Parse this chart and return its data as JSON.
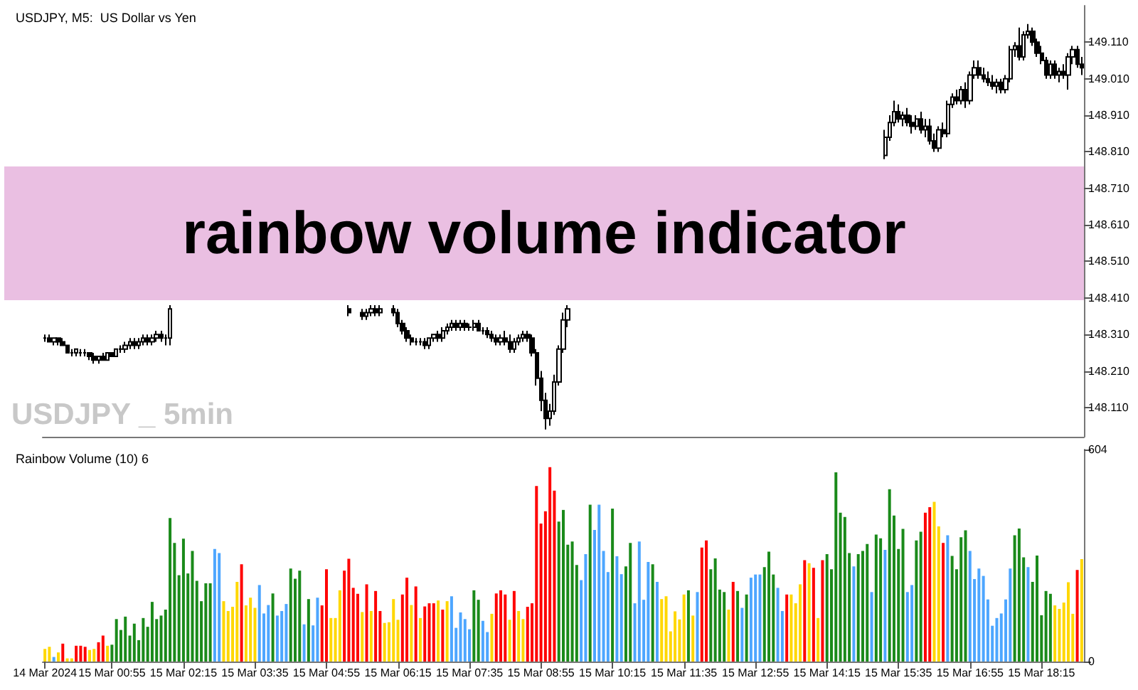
{
  "chart_data": [
    {
      "type": "candlestick",
      "title": "USDJPY, M5:  US Dollar vs Yen",
      "annotations": [
        "rainbow volume indicator",
        "USDJPY _ 5min"
      ],
      "color": "#000000",
      "tick_labels": "y",
      "ylim": [
        148.03,
        149.21
      ],
      "yticks": [
        {
          "value": 148.11,
          "label": "148.110"
        },
        {
          "value": 148.21,
          "label": "148.210"
        },
        {
          "value": 148.31,
          "label": "148.310"
        },
        {
          "value": 148.41,
          "label": "148.410"
        },
        {
          "value": 148.51,
          "label": "148.510"
        },
        {
          "value": 148.61,
          "label": "148.610"
        },
        {
          "value": 148.71,
          "label": "148.710"
        },
        {
          "value": 148.81,
          "label": "148.810"
        },
        {
          "value": 148.91,
          "label": "148.910"
        },
        {
          "value": 149.01,
          "label": "149.010"
        },
        {
          "value": 149.11,
          "label": "149.110"
        }
      ],
      "ohlc": [
        [
          148.3,
          148.31,
          148.29,
          148.3
        ],
        [
          148.3,
          148.31,
          148.29,
          148.29
        ],
        [
          148.29,
          148.3,
          148.28,
          148.3
        ],
        [
          148.3,
          148.3,
          148.28,
          148.29
        ],
        [
          148.29,
          148.3,
          148.28,
          148.28
        ],
        [
          148.28,
          148.28,
          148.26,
          148.26
        ],
        [
          148.26,
          148.27,
          148.25,
          148.26
        ],
        [
          148.26,
          148.27,
          148.25,
          148.27
        ],
        [
          148.26,
          148.27,
          148.25,
          148.26
        ],
        [
          148.26,
          148.27,
          148.25,
          148.26
        ],
        [
          148.26,
          148.26,
          148.24,
          148.25
        ],
        [
          148.25,
          148.26,
          148.23,
          148.24
        ],
        [
          148.24,
          148.25,
          148.23,
          148.25
        ],
        [
          148.25,
          148.26,
          148.24,
          148.24
        ],
        [
          148.24,
          148.26,
          148.24,
          148.26
        ],
        [
          148.26,
          148.26,
          148.25,
          148.25
        ],
        [
          148.25,
          148.27,
          148.25,
          148.27
        ],
        [
          148.27,
          148.28,
          148.26,
          148.27
        ],
        [
          148.27,
          148.29,
          148.26,
          148.28
        ],
        [
          148.28,
          148.3,
          148.27,
          148.29
        ],
        [
          148.29,
          148.3,
          148.27,
          148.28
        ],
        [
          148.28,
          148.3,
          148.27,
          148.29
        ],
        [
          148.29,
          148.31,
          148.28,
          148.3
        ],
        [
          148.3,
          148.31,
          148.28,
          148.29
        ],
        [
          148.29,
          148.31,
          148.28,
          148.3
        ],
        [
          148.3,
          148.32,
          148.29,
          148.31
        ],
        [
          148.31,
          148.32,
          148.29,
          148.3
        ],
        [
          148.3,
          148.31,
          148.28,
          148.3
        ],
        [
          148.3,
          148.39,
          148.28,
          148.38
        ],
        null,
        null,
        null,
        null,
        null,
        null,
        null,
        null,
        null,
        null,
        null,
        null,
        null,
        null,
        null,
        null,
        null,
        null,
        null,
        null,
        null,
        null,
        null,
        null,
        null,
        null,
        null,
        null,
        null,
        null,
        null,
        null,
        null,
        null,
        null,
        null,
        null,
        null,
        null,
        [
          148.38,
          148.39,
          148.36,
          148.37
        ],
        null,
        null,
        [
          148.37,
          148.38,
          148.35,
          148.36
        ],
        [
          148.36,
          148.38,
          148.35,
          148.37
        ],
        [
          148.37,
          148.39,
          148.36,
          148.38
        ],
        [
          148.38,
          148.39,
          148.36,
          148.37
        ],
        [
          148.37,
          148.39,
          148.36,
          148.38
        ],
        null,
        null,
        [
          148.38,
          148.39,
          148.36,
          148.37
        ],
        [
          148.37,
          148.38,
          148.33,
          148.34
        ],
        [
          148.34,
          148.35,
          148.31,
          148.32
        ],
        [
          148.32,
          148.33,
          148.29,
          148.3
        ],
        [
          148.3,
          148.31,
          148.28,
          148.29
        ],
        [
          148.29,
          148.3,
          148.28,
          148.29
        ],
        [
          148.29,
          148.3,
          148.28,
          148.29
        ],
        [
          148.29,
          148.3,
          148.27,
          148.28
        ],
        [
          148.28,
          148.3,
          148.27,
          148.3
        ],
        [
          148.3,
          148.31,
          148.29,
          148.31
        ],
        [
          148.31,
          148.32,
          148.29,
          148.3
        ],
        [
          148.3,
          148.33,
          148.29,
          148.32
        ],
        [
          148.32,
          148.34,
          148.31,
          148.33
        ],
        [
          148.33,
          148.35,
          148.32,
          148.34
        ],
        [
          148.34,
          148.35,
          148.32,
          148.33
        ],
        [
          148.33,
          148.35,
          148.32,
          148.34
        ],
        [
          148.34,
          148.35,
          148.32,
          148.33
        ],
        [
          148.33,
          148.34,
          148.32,
          148.33
        ],
        [
          148.33,
          148.35,
          148.32,
          148.34
        ],
        [
          148.34,
          148.35,
          148.32,
          148.32
        ],
        [
          148.32,
          148.33,
          148.31,
          148.32
        ],
        [
          148.32,
          148.33,
          148.3,
          148.31
        ],
        [
          148.31,
          148.32,
          148.29,
          148.3
        ],
        [
          148.3,
          148.31,
          148.28,
          148.29
        ],
        [
          148.29,
          148.31,
          148.28,
          148.3
        ],
        [
          148.3,
          148.32,
          148.28,
          148.29
        ],
        [
          148.29,
          148.31,
          148.26,
          148.27
        ],
        [
          148.27,
          148.3,
          148.26,
          148.29
        ],
        [
          148.29,
          148.31,
          148.28,
          148.3
        ],
        [
          148.3,
          148.32,
          148.29,
          148.31
        ],
        [
          148.31,
          148.32,
          148.29,
          148.3
        ],
        [
          148.3,
          148.31,
          148.25,
          148.26
        ],
        [
          148.26,
          148.27,
          148.17,
          148.19
        ],
        [
          148.19,
          148.21,
          148.1,
          148.13
        ],
        [
          148.13,
          148.15,
          148.05,
          148.08
        ],
        [
          148.08,
          148.12,
          148.06,
          148.1
        ],
        [
          148.1,
          148.2,
          148.09,
          148.18
        ],
        [
          148.18,
          148.28,
          148.17,
          148.27
        ],
        [
          148.27,
          148.37,
          148.26,
          148.35
        ],
        [
          148.35,
          148.39,
          148.33,
          148.38
        ],
        null,
        null,
        null,
        null,
        null,
        null,
        null,
        null,
        null,
        null,
        null,
        null,
        null,
        null,
        null,
        null,
        null,
        null,
        null,
        null,
        null,
        null,
        null,
        null,
        null,
        null,
        null,
        null,
        null,
        null,
        null,
        null,
        null,
        null,
        null,
        null,
        null,
        null,
        null,
        null,
        null,
        null,
        null,
        null,
        null,
        null,
        null,
        null,
        null,
        null,
        null,
        null,
        null,
        null,
        null,
        null,
        null,
        null,
        null,
        null,
        null,
        null,
        null,
        null,
        null,
        null,
        null,
        null,
        null,
        null,
        [
          148.8,
          148.87,
          148.79,
          148.85
        ],
        [
          148.85,
          148.91,
          148.84,
          148.89
        ],
        [
          148.89,
          148.95,
          148.88,
          148.92
        ],
        [
          148.92,
          148.94,
          148.89,
          148.9
        ],
        [
          148.9,
          148.92,
          148.88,
          148.91
        ],
        [
          148.91,
          148.93,
          148.88,
          148.89
        ],
        [
          148.89,
          148.91,
          148.86,
          148.88
        ],
        [
          148.88,
          148.91,
          148.87,
          148.9
        ],
        [
          148.9,
          148.92,
          148.86,
          148.87
        ],
        [
          148.87,
          148.9,
          148.85,
          148.88
        ],
        [
          148.88,
          148.9,
          148.83,
          148.84
        ],
        [
          148.84,
          148.86,
          148.81,
          148.82
        ],
        [
          148.82,
          148.88,
          148.81,
          148.87
        ],
        [
          148.87,
          148.89,
          148.85,
          148.86
        ],
        [
          148.86,
          148.95,
          148.85,
          148.94
        ],
        [
          148.94,
          148.97,
          148.93,
          148.96
        ],
        [
          148.96,
          148.98,
          148.94,
          148.95
        ],
        [
          148.95,
          148.99,
          148.94,
          148.98
        ],
        [
          148.98,
          149.0,
          148.93,
          148.95
        ],
        [
          148.95,
          149.03,
          148.94,
          149.02
        ],
        [
          149.02,
          149.06,
          149.01,
          149.04
        ],
        [
          149.04,
          149.06,
          149.01,
          149.02
        ],
        [
          149.02,
          149.04,
          149.0,
          149.01
        ],
        [
          149.01,
          149.03,
          148.99,
          149.0
        ],
        [
          149.0,
          149.02,
          148.98,
          148.99
        ],
        [
          148.99,
          149.01,
          148.97,
          149.0
        ],
        [
          149.0,
          149.01,
          148.97,
          148.98
        ],
        [
          148.98,
          149.02,
          148.97,
          149.01
        ],
        [
          149.01,
          149.1,
          149.0,
          149.09
        ],
        [
          149.09,
          149.11,
          149.07,
          149.1
        ],
        [
          149.1,
          149.15,
          149.06,
          149.07
        ],
        [
          149.07,
          149.14,
          149.06,
          149.13
        ],
        [
          149.13,
          149.16,
          149.12,
          149.14
        ],
        [
          149.14,
          149.15,
          149.1,
          149.11
        ],
        [
          149.11,
          149.12,
          149.07,
          149.08
        ],
        [
          149.08,
          149.1,
          149.05,
          149.06
        ],
        [
          149.06,
          149.07,
          149.01,
          149.02
        ],
        [
          149.02,
          149.06,
          149.01,
          149.05
        ],
        [
          149.05,
          149.06,
          149.01,
          149.02
        ],
        [
          149.02,
          149.04,
          149.0,
          149.03
        ],
        [
          149.03,
          149.05,
          149.01,
          149.02
        ],
        [
          149.02,
          149.08,
          148.98,
          149.07
        ],
        [
          149.07,
          149.1,
          149.05,
          149.09
        ],
        [
          149.09,
          149.1,
          149.04,
          149.05
        ],
        [
          149.05,
          149.07,
          149.02,
          149.04
        ]
      ]
    },
    {
      "type": "bar",
      "title": "Rainbow Volume (10) 6",
      "ylim": [
        0,
        604
      ],
      "yticks": [
        0,
        604
      ],
      "categories": [
        "14 Mar 2024",
        null,
        null,
        null,
        null,
        null,
        null,
        null,
        null,
        null,
        null,
        null,
        null,
        null,
        null,
        "15 Mar 00:55",
        null,
        null,
        null,
        null,
        null,
        null,
        null,
        null,
        null,
        null,
        null,
        null,
        null,
        null,
        null,
        "15 Mar 02:15",
        null,
        null,
        null,
        null,
        null,
        null,
        null,
        null,
        null,
        null,
        null,
        null,
        null,
        null,
        null,
        "15 Mar 03:35",
        null,
        null,
        null,
        null,
        null,
        null,
        null,
        null,
        null,
        null,
        null,
        null,
        null,
        null,
        null,
        "15 Mar 04:55",
        null,
        null,
        null,
        null,
        null,
        null,
        null,
        null,
        null,
        null,
        null,
        null,
        null,
        null,
        null,
        "15 Mar 06:15",
        null,
        null,
        null,
        null,
        null,
        null,
        null,
        null,
        null,
        null,
        null,
        null,
        null,
        null,
        null,
        "15 Mar 07:35",
        null,
        null,
        null,
        null,
        null,
        null,
        null,
        null,
        null,
        null,
        null,
        null,
        null,
        null,
        null,
        "15 Mar 08:55",
        null,
        null,
        null,
        null,
        null,
        null,
        null,
        null,
        null,
        null,
        null,
        null,
        null,
        null,
        null,
        "15 Mar 10:15",
        null,
        null,
        null,
        null,
        null,
        null,
        null,
        null,
        null,
        null,
        null,
        null,
        null,
        null,
        null,
        "15 Mar 11:35",
        null,
        null,
        null,
        null,
        null,
        null,
        null,
        null,
        null,
        null,
        null,
        null,
        null,
        null,
        null,
        "15 Mar 12:55",
        null,
        null,
        null,
        null,
        null,
        null,
        null,
        null,
        null,
        null,
        null,
        null,
        null,
        null,
        null,
        "15 Mar 14:15",
        null,
        null,
        null,
        null,
        null,
        null,
        null,
        null,
        null,
        null,
        null,
        null,
        null,
        null,
        null,
        "15 Mar 15:35",
        null,
        null,
        null,
        null,
        null,
        null,
        null,
        null,
        null,
        null,
        null,
        null,
        null,
        null,
        null,
        "15 Mar 16:55",
        null,
        null,
        null,
        null,
        null,
        null,
        null,
        null,
        null,
        null,
        null,
        null,
        null,
        null,
        null,
        "15 Mar 18:15",
        null,
        null,
        null,
        null,
        null,
        null,
        null,
        null,
        null
      ],
      "values": [
        36,
        42,
        13,
        26,
        51,
        9,
        9,
        45,
        45,
        42,
        33,
        36,
        55,
        74,
        45,
        48,
        121,
        90,
        128,
        74,
        108,
        61,
        124,
        99,
        170,
        121,
        131,
        148,
        409,
        338,
        246,
        350,
        251,
        315,
        230,
        172,
        223,
        223,
        321,
        309,
        172,
        144,
        156,
        227,
        277,
        160,
        182,
        153,
        218,
        137,
        161,
        194,
        131,
        144,
        164,
        265,
        236,
        259,
        106,
        178,
        103,
        182,
        160,
        263,
        124,
        124,
        203,
        259,
        293,
        210,
        193,
        141,
        220,
        144,
        201,
        144,
        110,
        112,
        178,
        119,
        191,
        239,
        161,
        214,
        124,
        157,
        166,
        166,
        174,
        148,
        172,
        186,
        96,
        140,
        121,
        92,
        203,
        176,
        116,
        84,
        136,
        194,
        203,
        191,
        119,
        201,
        144,
        121,
        156,
        166,
        500,
        393,
        428,
        554,
        487,
        399,
        432,
        333,
        342,
        275,
        232,
        306,
        447,
        375,
        447,
        315,
        255,
        436,
        300,
        249,
        271,
        338,
        166,
        342,
        176,
        284,
        277,
        227,
        178,
        186,
        86,
        143,
        120,
        191,
        203,
        131,
        198,
        325,
        345,
        263,
        294,
        205,
        198,
        148,
        227,
        201,
        153,
        191,
        239,
        248,
        248,
        269,
        313,
        248,
        210,
        144,
        191,
        191,
        166,
        220,
        289,
        280,
        267,
        124,
        289,
        306,
        263,
        539,
        424,
        412,
        309,
        271,
        306,
        315,
        335,
        198,
        362,
        351,
        318,
        491,
        416,
        321,
        378,
        198,
        218,
        345,
        370,
        424,
        440,
        455,
        385,
        338,
        360,
        301,
        263,
        354,
        374,
        315,
        235,
        265,
        244,
        177,
        102,
        124,
        137,
        177,
        265,
        360,
        379,
        297,
        269,
        227,
        302,
        132,
        201,
        193,
        160,
        150,
        168,
        226,
        136,
        261,
        292
      ],
      "colors": [
        "#ffd700",
        "#ffd700",
        "#4da6ff",
        "#ffd700",
        "#ff0000",
        "#ffd700",
        "#ffd700",
        "#ff0000",
        "#ff0000",
        "#ff0000",
        "#ffd700",
        "#ffd700",
        "#ff0000",
        "#ff0000",
        "#ffd700",
        "#1a8a1a",
        "#1a8a1a",
        "#1a8a1a",
        "#1a8a1a",
        "#1a8a1a",
        "#1a8a1a",
        "#1a8a1a",
        "#1a8a1a",
        "#1a8a1a",
        "#1a8a1a",
        "#1a8a1a",
        "#1a8a1a",
        "#1a8a1a",
        "#1a8a1a",
        "#1a8a1a",
        "#1a8a1a",
        "#1a8a1a",
        "#1a8a1a",
        "#1a8a1a",
        "#1a8a1a",
        "#1a8a1a",
        "#1a8a1a",
        "#1a8a1a",
        "#4da6ff",
        "#4da6ff",
        "#ffd700",
        "#ffd700",
        "#ffd700",
        "#ffd700",
        "#ff0000",
        "#ffd700",
        "#ffd700",
        "#ffd700",
        "#4da6ff",
        "#4da6ff",
        "#4da6ff",
        "#1a8a1a",
        "#4da6ff",
        "#4da6ff",
        "#4da6ff",
        "#1a8a1a",
        "#1a8a1a",
        "#1a8a1a",
        "#4da6ff",
        "#1a8a1a",
        "#4da6ff",
        "#4da6ff",
        "#ff0000",
        "#ff0000",
        "#ffd700",
        "#ffd700",
        "#ffd700",
        "#ff0000",
        "#ff0000",
        "#ff0000",
        "#ff0000",
        "#ffd700",
        "#ff0000",
        "#ffd700",
        "#ff0000",
        "#ff0000",
        "#ffd700",
        "#ffd700",
        "#ffd700",
        "#ffd700",
        "#ff0000",
        "#ff0000",
        "#ffd700",
        "#ff0000",
        "#ffd700",
        "#ff0000",
        "#ff0000",
        "#ff0000",
        "#ffd700",
        "#ff0000",
        "#ffd700",
        "#4da6ff",
        "#4da6ff",
        "#4da6ff",
        "#4da6ff",
        "#4da6ff",
        "#1a8a1a",
        "#1a8a1a",
        "#4da6ff",
        "#4da6ff",
        "#ffd700",
        "#ff0000",
        "#ff0000",
        "#ff0000",
        "#ffd700",
        "#ff0000",
        "#ffd700",
        "#ffd700",
        "#ff0000",
        "#ff0000",
        "#ff0000",
        "#ff0000",
        "#ff0000",
        "#ff0000",
        "#ff0000",
        "#1a8a1a",
        "#1a8a1a",
        "#1a8a1a",
        "#1a8a1a",
        "#1a8a1a",
        "#4da6ff",
        "#4da6ff",
        "#1a8a1a",
        "#4da6ff",
        "#4da6ff",
        "#4da6ff",
        "#4da6ff",
        "#1a8a1a",
        "#4da6ff",
        "#4da6ff",
        "#1a8a1a",
        "#1a8a1a",
        "#4da6ff",
        "#4da6ff",
        "#4da6ff",
        "#4da6ff",
        "#1a8a1a",
        "#4da6ff",
        "#ffd700",
        "#ffd700",
        "#ffd700",
        "#ffd700",
        "#ffd700",
        "#ffd700",
        "#1a8a1a",
        "#ffd700",
        "#4da6ff",
        "#ff0000",
        "#ff0000",
        "#1a8a1a",
        "#1a8a1a",
        "#1a8a1a",
        "#1a8a1a",
        "#ffd700",
        "#ff0000",
        "#1a8a1a",
        "#4da6ff",
        "#1a8a1a",
        "#4da6ff",
        "#4da6ff",
        "#4da6ff",
        "#1a8a1a",
        "#1a8a1a",
        "#1a8a1a",
        "#4da6ff",
        "#4da6ff",
        "#ff0000",
        "#ffd700",
        "#ffd700",
        "#ffd700",
        "#ff0000",
        "#ffd700",
        "#ff0000",
        "#ffd700",
        "#ff0000",
        "#1a8a1a",
        "#1a8a1a",
        "#1a8a1a",
        "#1a8a1a",
        "#1a8a1a",
        "#1a8a1a",
        "#4da6ff",
        "#1a8a1a",
        "#1a8a1a",
        "#1a8a1a",
        "#4da6ff",
        "#1a8a1a",
        "#1a8a1a",
        "#4da6ff",
        "#1a8a1a",
        "#1a8a1a",
        "#1a8a1a",
        "#1a8a1a",
        "#4da6ff",
        "#4da6ff",
        "#1a8a1a",
        "#1a8a1a",
        "#ff0000",
        "#ff0000",
        "#ffd700",
        "#ffd700",
        "#ff0000",
        "#4da6ff",
        "#1a8a1a",
        "#1a8a1a",
        "#1a8a1a",
        "#1a8a1a",
        "#4da6ff",
        "#4da6ff",
        "#4da6ff",
        "#4da6ff",
        "#4da6ff",
        "#4da6ff",
        "#4da6ff",
        "#4da6ff",
        "#4da6ff",
        "#4da6ff",
        "#1a8a1a",
        "#1a8a1a",
        "#1a8a1a",
        "#4da6ff",
        "#1a8a1a",
        "#1a8a1a",
        "#1a8a1a",
        "#1a8a1a",
        "#1a8a1a",
        "#ffd700",
        "#ffd700",
        "#ffd700",
        "#ffd700",
        "#ffd700",
        "#ff0000",
        "#ffd700"
      ]
    }
  ]
}
